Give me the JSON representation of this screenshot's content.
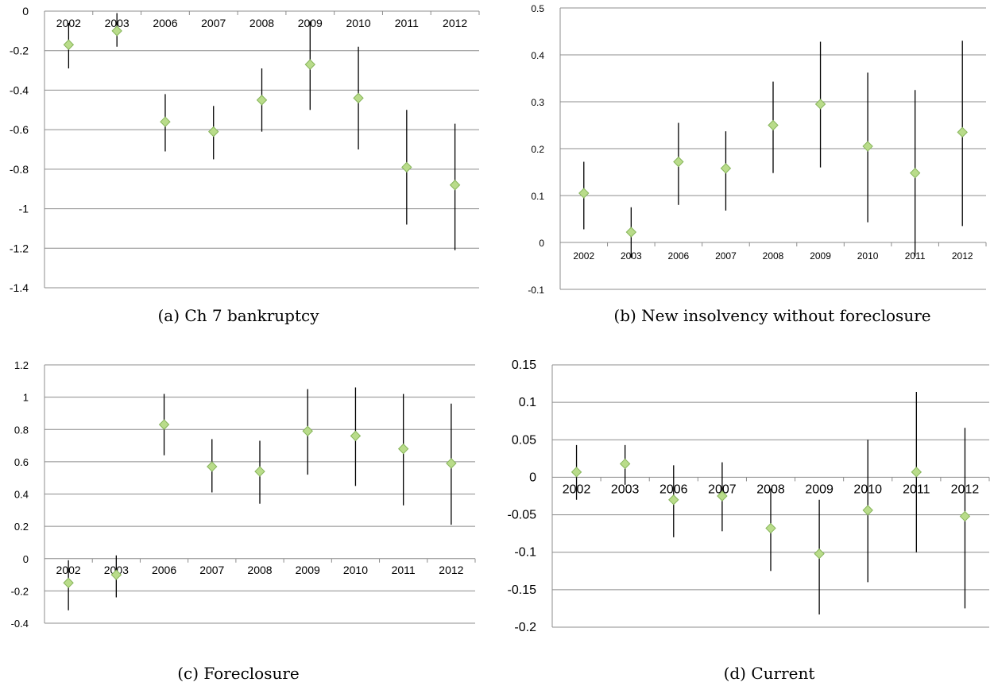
{
  "colors": {
    "marker_fill": "#b9dc8a",
    "marker_stroke": "#86b45a",
    "grid": "#8c8c8c",
    "whisker": "#000000"
  },
  "chart_data": [
    {
      "type": "scatter",
      "caption": "(a) Ch 7 bankruptcy",
      "categories": [
        "2002",
        "2003",
        "2006",
        "2007",
        "2008",
        "2009",
        "2010",
        "2011",
        "2012"
      ],
      "values": [
        -0.17,
        -0.1,
        -0.56,
        -0.61,
        -0.45,
        -0.27,
        -0.44,
        -0.79,
        -0.88
      ],
      "error_low": [
        -0.29,
        -0.18,
        -0.71,
        -0.75,
        -0.61,
        -0.5,
        -0.7,
        -1.08,
        -1.21
      ],
      "error_high": [
        -0.06,
        -0.01,
        -0.42,
        -0.48,
        -0.29,
        -0.05,
        -0.18,
        -0.5,
        -0.57
      ],
      "ylim": [
        -1.4,
        0
      ],
      "yticks": [
        "0",
        "-0.2",
        "-0.4",
        "-0.6",
        "-0.8",
        "-1",
        "-1.2",
        "-1.4"
      ],
      "grid": true,
      "legend": "none"
    },
    {
      "type": "scatter",
      "caption": "(b) New insolvency without foreclosure",
      "categories": [
        "2002",
        "2003",
        "2006",
        "2007",
        "2008",
        "2009",
        "2010",
        "2011",
        "2012"
      ],
      "values": [
        0.105,
        0.022,
        0.172,
        0.158,
        0.25,
        0.295,
        0.205,
        0.148,
        0.235
      ],
      "error_low": [
        0.028,
        -0.033,
        0.08,
        0.068,
        0.148,
        0.16,
        0.043,
        -0.03,
        0.035
      ],
      "error_high": [
        0.172,
        0.075,
        0.255,
        0.237,
        0.343,
        0.428,
        0.362,
        0.325,
        0.43
      ],
      "ylim": [
        -0.1,
        0.5
      ],
      "yticks": [
        "0.5",
        "0.4",
        "0.3",
        "0.2",
        "0.1",
        "0",
        "-0.1"
      ],
      "grid": true,
      "legend": "none"
    },
    {
      "type": "scatter",
      "caption": "(c) Foreclosure",
      "categories": [
        "2002",
        "2003",
        "2006",
        "2007",
        "2008",
        "2009",
        "2010",
        "2011",
        "2012"
      ],
      "values": [
        -0.15,
        -0.1,
        0.83,
        0.57,
        0.54,
        0.79,
        0.76,
        0.68,
        0.59
      ],
      "error_low": [
        -0.32,
        -0.24,
        0.64,
        0.41,
        0.34,
        0.52,
        0.45,
        0.33,
        0.21
      ],
      "error_high": [
        -0.01,
        0.02,
        1.02,
        0.74,
        0.73,
        1.05,
        1.06,
        1.02,
        0.96
      ],
      "ylim": [
        -0.4,
        1.2
      ],
      "yticks": [
        "1.2",
        "1",
        "0.8",
        "0.6",
        "0.4",
        "0.2",
        "0",
        "-0.2",
        "-0.4"
      ],
      "grid": true,
      "legend": "none"
    },
    {
      "type": "scatter",
      "caption": "(d) Current",
      "categories": [
        "2002",
        "2003",
        "2006",
        "2007",
        "2008",
        "2009",
        "2010",
        "2011",
        "2012"
      ],
      "values": [
        0.007,
        0.018,
        -0.03,
        -0.025,
        -0.068,
        -0.102,
        -0.044,
        0.007,
        -0.052
      ],
      "error_low": [
        -0.03,
        -0.01,
        -0.08,
        -0.072,
        -0.125,
        -0.183,
        -0.14,
        -0.1,
        -0.175
      ],
      "error_high": [
        0.043,
        0.043,
        0.016,
        0.02,
        -0.015,
        -0.03,
        0.05,
        0.114,
        0.066
      ],
      "ylim": [
        -0.2,
        0.15
      ],
      "yticks": [
        "0.15",
        "0.1",
        "0.05",
        "0",
        "-0.05",
        "-0.1",
        "-0.15",
        "-0.2"
      ],
      "grid": true,
      "legend": "none"
    }
  ]
}
